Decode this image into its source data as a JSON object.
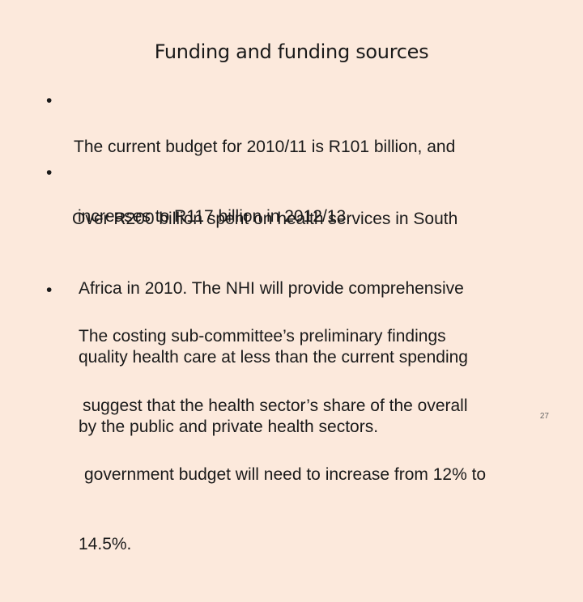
{
  "slide": {
    "title": "Funding and funding sources",
    "bullet_symbol": "•",
    "bullets": [
      {
        "lines": [
          "The current budget for 2010/11 is R101 billion, and",
          "increases to R117 billion in 2012/13."
        ]
      },
      {
        "lines": [
          "Over R200 billion spent on health services in South",
          "Africa in 2010. The NHI will provide comprehensive",
          "quality health care at less than the current spending",
          "by the public and private health sectors."
        ]
      },
      {
        "lines": [
          "The costing sub-committee’s preliminary findings",
          "suggest that the health sector’s share of the overall",
          "government budget will need to increase from 12% to",
          "14.5%."
        ]
      }
    ],
    "page_number": "27",
    "background_color": "#fce9dc"
  }
}
